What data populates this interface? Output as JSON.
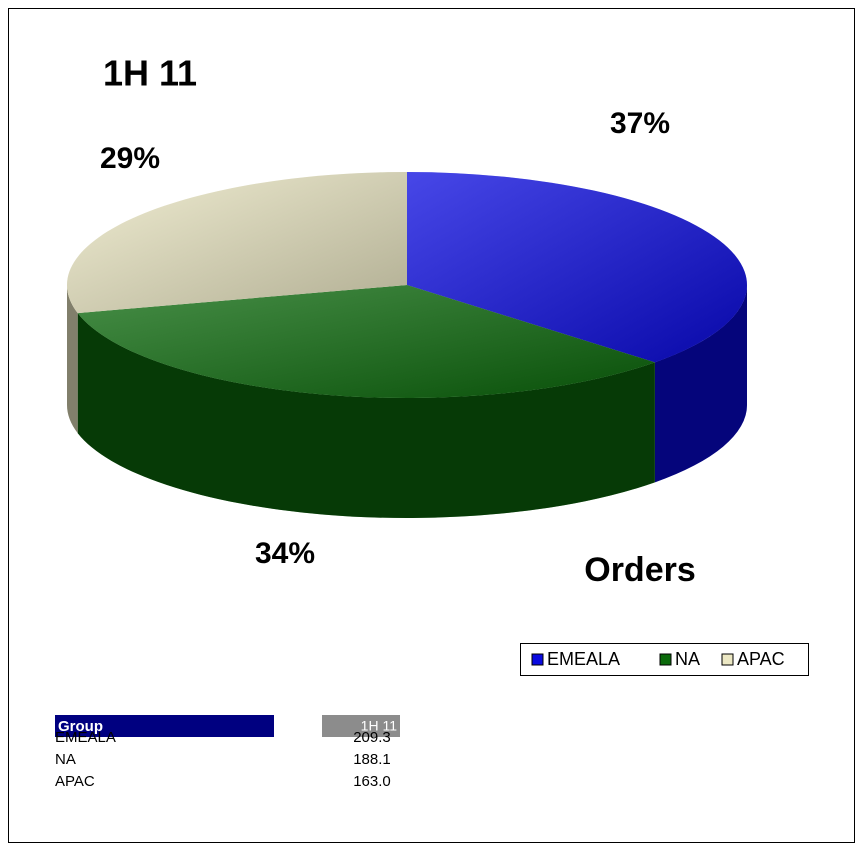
{
  "chart_data": {
    "type": "pie3d",
    "title": "1H 11",
    "annotation": "Orders",
    "categories": [
      "EMEALA",
      "NA",
      "APAC"
    ],
    "values": [
      37,
      34,
      29
    ],
    "value_labels": [
      "37%",
      "34%",
      "29%"
    ],
    "colors": [
      "#0a0ae0",
      "#0b6a0b",
      "#ece8c4"
    ],
    "legend": "bottom-right"
  },
  "table": {
    "header": [
      "Group",
      "1H 11"
    ],
    "rows": [
      [
        "EMEALA",
        "209.3"
      ],
      [
        "NA",
        "188.1"
      ],
      [
        "APAC",
        "163.0"
      ]
    ]
  }
}
